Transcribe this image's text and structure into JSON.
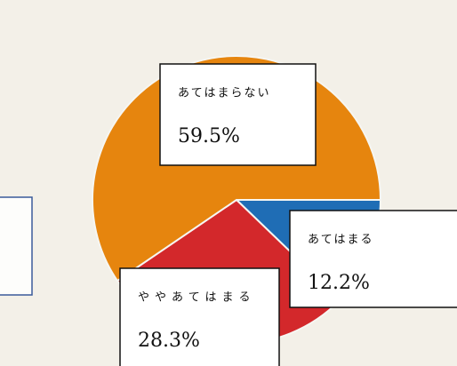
{
  "chart_data": {
    "type": "pie",
    "categories": [
      "あてはまる",
      "ややあてはまる",
      "あてはまらない"
    ],
    "values": [
      12.2,
      28.3,
      59.5
    ],
    "value_labels": [
      "12.2%",
      "28.3%",
      "59.5%"
    ],
    "colors": [
      "#1f6db5",
      "#d3282b",
      "#e6850e"
    ]
  }
}
